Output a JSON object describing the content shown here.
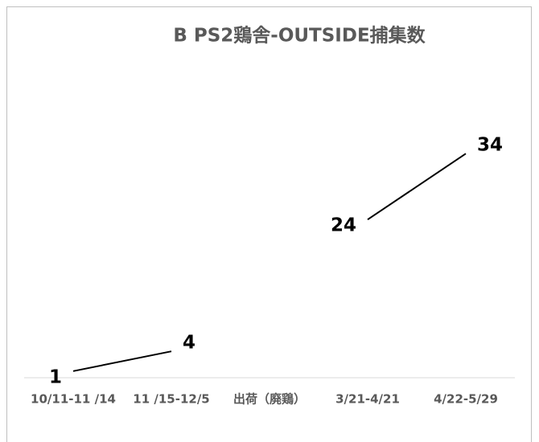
{
  "chart_data": {
    "type": "line",
    "title": "B PS2鶏舎-OUTSIDE捕集数",
    "categories": [
      "10/11-11 /14",
      "11 /15-12/5",
      "出荷（廃鶏）",
      "3/21-4/21",
      "4/22-5/29"
    ],
    "series": [
      {
        "name": null,
        "color": "#000000",
        "values": [
          1,
          4,
          null,
          24,
          34
        ]
      }
    ],
    "ylim": [
      0,
      40
    ]
  }
}
